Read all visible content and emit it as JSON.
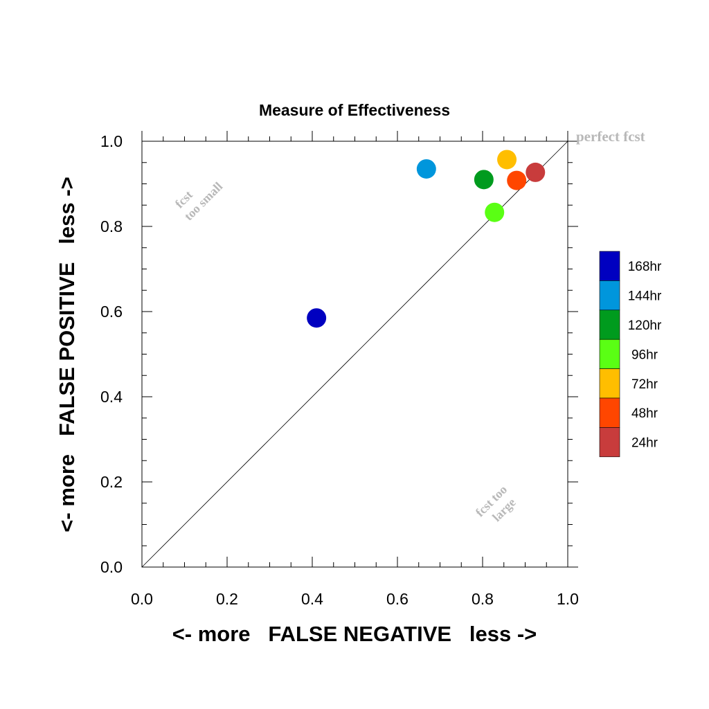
{
  "chart_data": {
    "type": "scatter",
    "title": "Measure of Effectiveness",
    "xlabel": "<- more   FALSE NEGATIVE   less ->",
    "ylabel": "<- more   FALSE POSITIVE   less ->",
    "xlim": [
      0.0,
      1.0
    ],
    "ylim": [
      0.0,
      1.0
    ],
    "x_ticks": [
      "0.0",
      "0.2",
      "0.4",
      "0.6",
      "0.8",
      "1.0"
    ],
    "y_ticks": [
      "0.0",
      "0.2",
      "0.4",
      "0.6",
      "0.8",
      "1.0"
    ],
    "grid": false,
    "legend_position": "right",
    "reference_line": "diagonal",
    "annotations": {
      "perfect": "perfect fcst",
      "too_small_1": "fcst",
      "too_small_2": "too small",
      "too_large_1": "fcst too",
      "too_large_2": "large"
    },
    "series": [
      {
        "name": "168hr",
        "color": "#0000c0",
        "x": 0.41,
        "y": 0.585
      },
      {
        "name": "144hr",
        "color": "#0096dc",
        "x": 0.668,
        "y": 0.935
      },
      {
        "name": "120hr",
        "color": "#009b1e",
        "x": 0.803,
        "y": 0.91
      },
      {
        "name": "96hr",
        "color": "#5aff14",
        "x": 0.828,
        "y": 0.833
      },
      {
        "name": "72hr",
        "color": "#ffbe00",
        "x": 0.857,
        "y": 0.957
      },
      {
        "name": "48hr",
        "color": "#ff4600",
        "x": 0.88,
        "y": 0.908
      },
      {
        "name": "24hr",
        "color": "#c83c3c",
        "x": 0.924,
        "y": 0.927
      }
    ]
  }
}
